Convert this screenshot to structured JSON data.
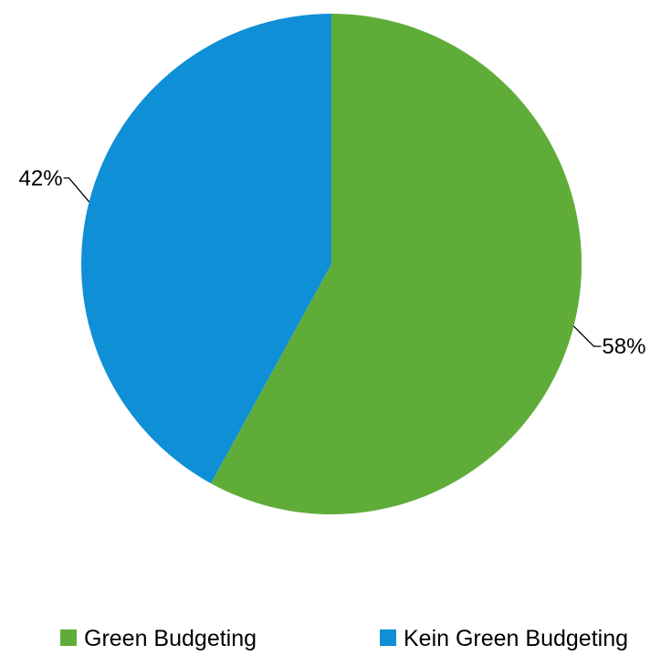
{
  "chart_data": {
    "type": "pie",
    "title": "",
    "series": [
      {
        "categories": [
          "Green Budgeting",
          "Kein Green Budgeting"
        ],
        "values": [
          58,
          42
        ],
        "labels": [
          "58%",
          "42%"
        ],
        "colors": [
          "#5fad38",
          "#0f8fd6"
        ]
      }
    ],
    "start_angle_deg": 0,
    "direction": "clockwise",
    "legend": {
      "position": "bottom",
      "entries": [
        "Green Budgeting",
        "Kein Green Budgeting"
      ]
    }
  }
}
